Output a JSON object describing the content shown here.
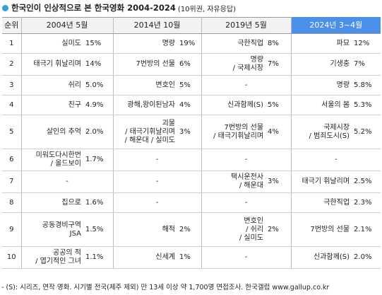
{
  "title": {
    "main": "한국인이 인상적으로 본 한국영화 2004-2024",
    "sub": "(10위권, 자유응답)"
  },
  "header": {
    "rank": "순위",
    "c2004": "2004년 5월",
    "c2014": "2014년 10월",
    "c2019": "2019년 5월",
    "c2024": "2024년 3~4월"
  },
  "rows": [
    {
      "rank": "1",
      "m2004": [
        "실미도"
      ],
      "p2004": "15%",
      "m2014": [
        "명량"
      ],
      "p2014": "19%",
      "m2019": [
        "극한직업"
      ],
      "p2019": "8%",
      "m2024": [
        "파묘"
      ],
      "p2024": "12%"
    },
    {
      "rank": "2",
      "m2004": [
        "태극기 휘날리며"
      ],
      "p2004": "14%",
      "m2014": [
        "7번방의 선물"
      ],
      "p2014": "6%",
      "m2019": [
        "명량",
        "/ 국제시장"
      ],
      "p2019": "7%",
      "m2024": [
        "기생충"
      ],
      "p2024": "7%"
    },
    {
      "rank": "3",
      "m2004": [
        "쉬리"
      ],
      "p2004": "5.0%",
      "m2014": [
        "변호인"
      ],
      "p2014": "5%",
      "m2019": [
        "-"
      ],
      "p2019": "",
      "m2024": [
        "명량"
      ],
      "p2024": "5.8%"
    },
    {
      "rank": "4",
      "m2004": [
        "친구"
      ],
      "p2004": "4.9%",
      "m2014": [
        "광해,왕이된남자"
      ],
      "p2014": "4%",
      "m2019": [
        "신과함께(S)"
      ],
      "p2019": "5%",
      "m2024": [
        "서울의 봄"
      ],
      "p2024": "5.3%"
    },
    {
      "rank": "5",
      "m2004": [
        "살인의 추억"
      ],
      "p2004": "2.0%",
      "m2014": [
        "괴물",
        "/ 태극기휘날리며",
        "/ 해운대 / 실미도"
      ],
      "p2014": "3%",
      "m2019": [
        "7번방의 선물",
        "/ 태극기휘날리며"
      ],
      "p2019": "4%",
      "m2024": [
        "국제시장",
        "/ 범죄도시(S)"
      ],
      "p2024": "5.2%"
    },
    {
      "rank": "6",
      "m2004": [
        "미워도다시한번",
        "/ 올드보이"
      ],
      "p2004": "1.7%",
      "m2014": [
        "-"
      ],
      "p2014": "",
      "m2019": [
        "-"
      ],
      "p2019": "",
      "m2024": [
        "-"
      ],
      "p2024": ""
    },
    {
      "rank": "7",
      "m2004": [
        "-"
      ],
      "p2004": "",
      "m2014": [
        "-"
      ],
      "p2014": "",
      "m2019": [
        "택시운전사",
        "/ 해운대"
      ],
      "p2019": "3%",
      "m2024": [
        "태극기 휘날리며"
      ],
      "p2024": "2.5%"
    },
    {
      "rank": "8",
      "m2004": [
        "집으로"
      ],
      "p2004": "1.6%",
      "m2014": [
        "-"
      ],
      "p2014": "",
      "m2019": [
        "-"
      ],
      "p2019": "",
      "m2024": [
        "극한직업"
      ],
      "p2024": "2.3%"
    },
    {
      "rank": "9",
      "m2004": [
        "공동경비구역",
        "JSA"
      ],
      "p2004": "1.5%",
      "m2014": [
        "해적"
      ],
      "p2014": "2%",
      "m2019": [
        "변호인",
        "/ 쉬리",
        "/ 실미도"
      ],
      "p2019": "2%",
      "m2024": [
        "7번방의 선물"
      ],
      "p2024": "2.1%"
    },
    {
      "rank": "10",
      "m2004": [
        "공공의 적",
        "/ 엽기적인 그녀"
      ],
      "p2004": "1.1%",
      "m2014": [
        "신세계"
      ],
      "p2014": "1%",
      "m2019": [
        "-"
      ],
      "p2019": "",
      "m2024": [
        "신과함께(S)"
      ],
      "p2024": "2.0%"
    }
  ],
  "footer": "- (S): 시리즈, 연작 영화. 시기별 전국(제주 제외) 만 13세 이상 약 1,700명 면접조사. 한국갤럽 www.gallup.co.kr"
}
